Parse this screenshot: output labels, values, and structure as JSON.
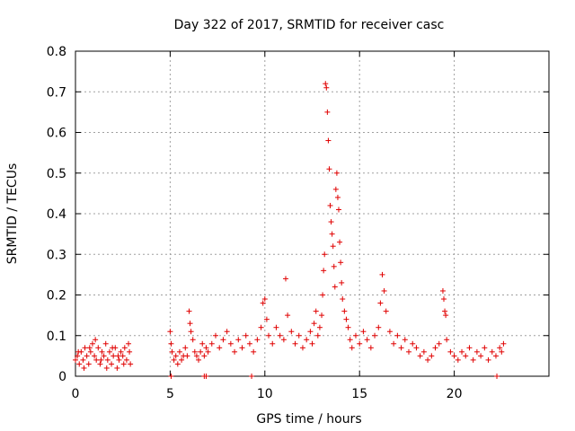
{
  "chart_data": {
    "type": "scatter",
    "title": "Day 322 of 2017, SRMTID for receiver casc",
    "xlabel": "GPS time / hours",
    "ylabel": "SRMTID / TECUs",
    "xlim": [
      0,
      25
    ],
    "ylim": [
      0,
      0.8
    ],
    "xticks": [
      0,
      5,
      10,
      15,
      20
    ],
    "yticks": [
      0,
      0.1,
      0.2,
      0.3,
      0.4,
      0.5,
      0.6,
      0.7,
      0.8
    ],
    "xtick_labels": [
      "0",
      "5",
      "10",
      "15",
      "20"
    ],
    "ytick_labels": [
      "0",
      "0.1",
      "0.2",
      "0.3",
      "0.4",
      "0.5",
      "0.6",
      "0.7",
      "0.8"
    ],
    "grid": true,
    "marker": "plus",
    "color": "#e00000",
    "series": [
      {
        "name": "SRMTID",
        "points": [
          [
            0.0,
            0.04
          ],
          [
            0.1,
            0.05
          ],
          [
            0.2,
            0.03
          ],
          [
            0.3,
            0.06
          ],
          [
            0.4,
            0.04
          ],
          [
            0.5,
            0.07
          ],
          [
            0.6,
            0.05
          ],
          [
            0.7,
            0.03
          ],
          [
            0.8,
            0.06
          ],
          [
            0.9,
            0.08
          ],
          [
            1.0,
            0.05
          ],
          [
            1.1,
            0.04
          ],
          [
            1.2,
            0.07
          ],
          [
            1.3,
            0.03
          ],
          [
            1.4,
            0.06
          ],
          [
            1.5,
            0.05
          ],
          [
            1.6,
            0.08
          ],
          [
            1.7,
            0.04
          ],
          [
            1.8,
            0.06
          ],
          [
            1.9,
            0.03
          ],
          [
            2.0,
            0.05
          ],
          [
            2.1,
            0.07
          ],
          [
            2.2,
            0.02
          ],
          [
            2.3,
            0.04
          ],
          [
            2.4,
            0.06
          ],
          [
            2.5,
            0.05
          ],
          [
            2.6,
            0.07
          ],
          [
            2.7,
            0.04
          ],
          [
            2.8,
            0.08
          ],
          [
            2.9,
            0.03
          ],
          [
            0.15,
            0.06
          ],
          [
            0.45,
            0.02
          ],
          [
            0.75,
            0.07
          ],
          [
            1.05,
            0.09
          ],
          [
            1.35,
            0.04
          ],
          [
            1.65,
            0.02
          ],
          [
            1.95,
            0.07
          ],
          [
            2.25,
            0.05
          ],
          [
            2.55,
            0.03
          ],
          [
            2.85,
            0.06
          ],
          [
            5.0,
            0.11
          ],
          [
            5.05,
            0.08
          ],
          [
            5.1,
            0.06
          ],
          [
            5.2,
            0.04
          ],
          [
            5.3,
            0.05
          ],
          [
            5.4,
            0.03
          ],
          [
            5.5,
            0.06
          ],
          [
            5.6,
            0.04
          ],
          [
            5.7,
            0.05
          ],
          [
            5.8,
            0.07
          ],
          [
            5.9,
            0.05
          ],
          [
            6.0,
            0.16
          ],
          [
            6.05,
            0.13
          ],
          [
            6.1,
            0.11
          ],
          [
            6.2,
            0.09
          ],
          [
            6.3,
            0.06
          ],
          [
            6.4,
            0.05
          ],
          [
            6.5,
            0.04
          ],
          [
            6.6,
            0.06
          ],
          [
            6.7,
            0.08
          ],
          [
            6.8,
            0.05
          ],
          [
            6.9,
            0.07
          ],
          [
            7.0,
            0.06
          ],
          [
            7.2,
            0.08
          ],
          [
            7.4,
            0.1
          ],
          [
            7.6,
            0.07
          ],
          [
            7.8,
            0.09
          ],
          [
            8.0,
            0.11
          ],
          [
            8.2,
            0.08
          ],
          [
            8.4,
            0.06
          ],
          [
            8.6,
            0.09
          ],
          [
            8.8,
            0.07
          ],
          [
            9.0,
            0.1
          ],
          [
            9.2,
            0.08
          ],
          [
            9.4,
            0.06
          ],
          [
            9.6,
            0.09
          ],
          [
            9.8,
            0.12
          ],
          [
            9.9,
            0.18
          ],
          [
            10.0,
            0.19
          ],
          [
            10.1,
            0.14
          ],
          [
            10.2,
            0.1
          ],
          [
            10.4,
            0.08
          ],
          [
            10.6,
            0.12
          ],
          [
            10.8,
            0.1
          ],
          [
            11.0,
            0.09
          ],
          [
            11.1,
            0.24
          ],
          [
            11.2,
            0.15
          ],
          [
            11.4,
            0.11
          ],
          [
            11.6,
            0.08
          ],
          [
            11.8,
            0.1
          ],
          [
            12.0,
            0.07
          ],
          [
            12.2,
            0.09
          ],
          [
            12.4,
            0.11
          ],
          [
            12.5,
            0.08
          ],
          [
            12.6,
            0.13
          ],
          [
            12.7,
            0.16
          ],
          [
            12.8,
            0.1
          ],
          [
            12.9,
            0.12
          ],
          [
            13.0,
            0.15
          ],
          [
            13.05,
            0.2
          ],
          [
            13.1,
            0.26
          ],
          [
            13.15,
            0.3
          ],
          [
            13.2,
            0.72
          ],
          [
            13.25,
            0.71
          ],
          [
            13.3,
            0.65
          ],
          [
            13.35,
            0.58
          ],
          [
            13.4,
            0.51
          ],
          [
            13.45,
            0.42
          ],
          [
            13.5,
            0.38
          ],
          [
            13.55,
            0.35
          ],
          [
            13.6,
            0.32
          ],
          [
            13.65,
            0.27
          ],
          [
            13.7,
            0.22
          ],
          [
            13.75,
            0.46
          ],
          [
            13.8,
            0.5
          ],
          [
            13.85,
            0.44
          ],
          [
            13.9,
            0.41
          ],
          [
            13.95,
            0.33
          ],
          [
            14.0,
            0.28
          ],
          [
            14.05,
            0.23
          ],
          [
            14.1,
            0.19
          ],
          [
            14.2,
            0.16
          ],
          [
            14.3,
            0.14
          ],
          [
            14.4,
            0.12
          ],
          [
            14.5,
            0.09
          ],
          [
            14.6,
            0.07
          ],
          [
            14.8,
            0.1
          ],
          [
            15.0,
            0.08
          ],
          [
            15.2,
            0.11
          ],
          [
            15.4,
            0.09
          ],
          [
            15.6,
            0.07
          ],
          [
            15.8,
            0.1
          ],
          [
            16.0,
            0.12
          ],
          [
            16.1,
            0.18
          ],
          [
            16.2,
            0.25
          ],
          [
            16.3,
            0.21
          ],
          [
            16.4,
            0.16
          ],
          [
            16.6,
            0.11
          ],
          [
            16.8,
            0.08
          ],
          [
            17.0,
            0.1
          ],
          [
            17.2,
            0.07
          ],
          [
            17.4,
            0.09
          ],
          [
            17.6,
            0.06
          ],
          [
            17.8,
            0.08
          ],
          [
            18.0,
            0.07
          ],
          [
            18.2,
            0.05
          ],
          [
            18.4,
            0.06
          ],
          [
            18.6,
            0.04
          ],
          [
            18.8,
            0.05
          ],
          [
            19.0,
            0.07
          ],
          [
            19.2,
            0.08
          ],
          [
            19.4,
            0.21
          ],
          [
            19.45,
            0.19
          ],
          [
            19.5,
            0.16
          ],
          [
            19.55,
            0.15
          ],
          [
            19.6,
            0.09
          ],
          [
            19.8,
            0.06
          ],
          [
            20.0,
            0.05
          ],
          [
            20.2,
            0.04
          ],
          [
            20.4,
            0.06
          ],
          [
            20.6,
            0.05
          ],
          [
            20.8,
            0.07
          ],
          [
            21.0,
            0.04
          ],
          [
            21.2,
            0.06
          ],
          [
            21.4,
            0.05
          ],
          [
            21.6,
            0.07
          ],
          [
            21.8,
            0.04
          ],
          [
            22.0,
            0.06
          ],
          [
            22.2,
            0.05
          ],
          [
            22.4,
            0.07
          ],
          [
            22.5,
            0.06
          ],
          [
            22.6,
            0.08
          ],
          [
            5.05,
            0.0
          ],
          [
            6.8,
            0.0
          ],
          [
            6.9,
            0.0
          ],
          [
            9.3,
            0.0
          ],
          [
            22.25,
            0.0
          ]
        ]
      }
    ]
  }
}
